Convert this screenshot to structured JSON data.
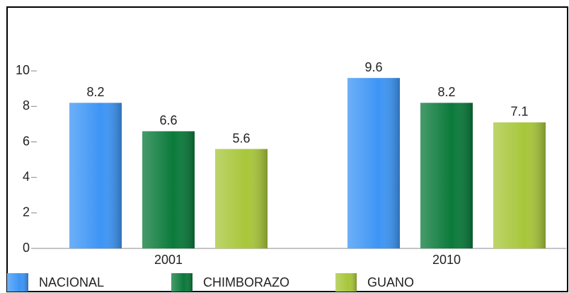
{
  "chart_data": {
    "type": "bar",
    "categories": [
      "2001",
      "2010"
    ],
    "series": [
      {
        "name": "NACIONAL",
        "color": "#3d95f5",
        "values": [
          8.2,
          9.6
        ]
      },
      {
        "name": "CHIMBORAZO",
        "color": "#0a7a3a",
        "values": [
          6.6,
          8.2
        ]
      },
      {
        "name": "GUANO",
        "color": "#a8c63a",
        "values": [
          5.6,
          7.1
        ]
      }
    ],
    "ylim": [
      0,
      12
    ],
    "yticks": [
      0,
      2,
      4,
      6,
      8,
      10
    ],
    "legend": "bottom"
  }
}
